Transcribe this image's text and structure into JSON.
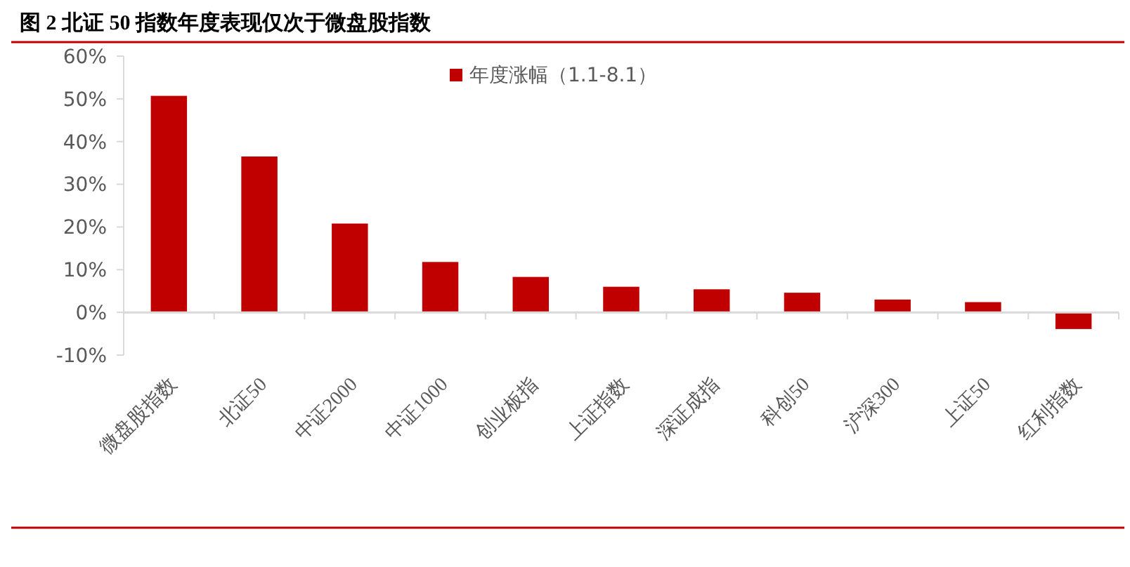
{
  "chart_data": {
    "type": "bar",
    "title": "图 2 北证 50 指数年度表现仅次于微盘股指数",
    "categories": [
      "微盘股指数",
      "北证50",
      "中证2000",
      "中证1000",
      "创业板指",
      "上证指数",
      "深证成指",
      "科创50",
      "沪深300",
      "上证50",
      "红利指数"
    ],
    "series": [
      {
        "name": "年度涨幅（1.1-8.1）",
        "color": "#c00000",
        "values": [
          50.7,
          36.5,
          20.8,
          11.8,
          8.3,
          6.0,
          5.4,
          4.6,
          3.0,
          2.4,
          -3.9
        ]
      }
    ],
    "ylim": [
      -10,
      60
    ],
    "yticks": [
      {
        "value": -10,
        "label": "-10%"
      },
      {
        "value": 0,
        "label": "0%"
      },
      {
        "value": 10,
        "label": "10%"
      },
      {
        "value": 20,
        "label": "20%"
      },
      {
        "value": 30,
        "label": "30%"
      },
      {
        "value": 40,
        "label": "40%"
      },
      {
        "value": 50,
        "label": "50%"
      },
      {
        "value": 60,
        "label": "60%"
      }
    ],
    "legend": "top"
  }
}
